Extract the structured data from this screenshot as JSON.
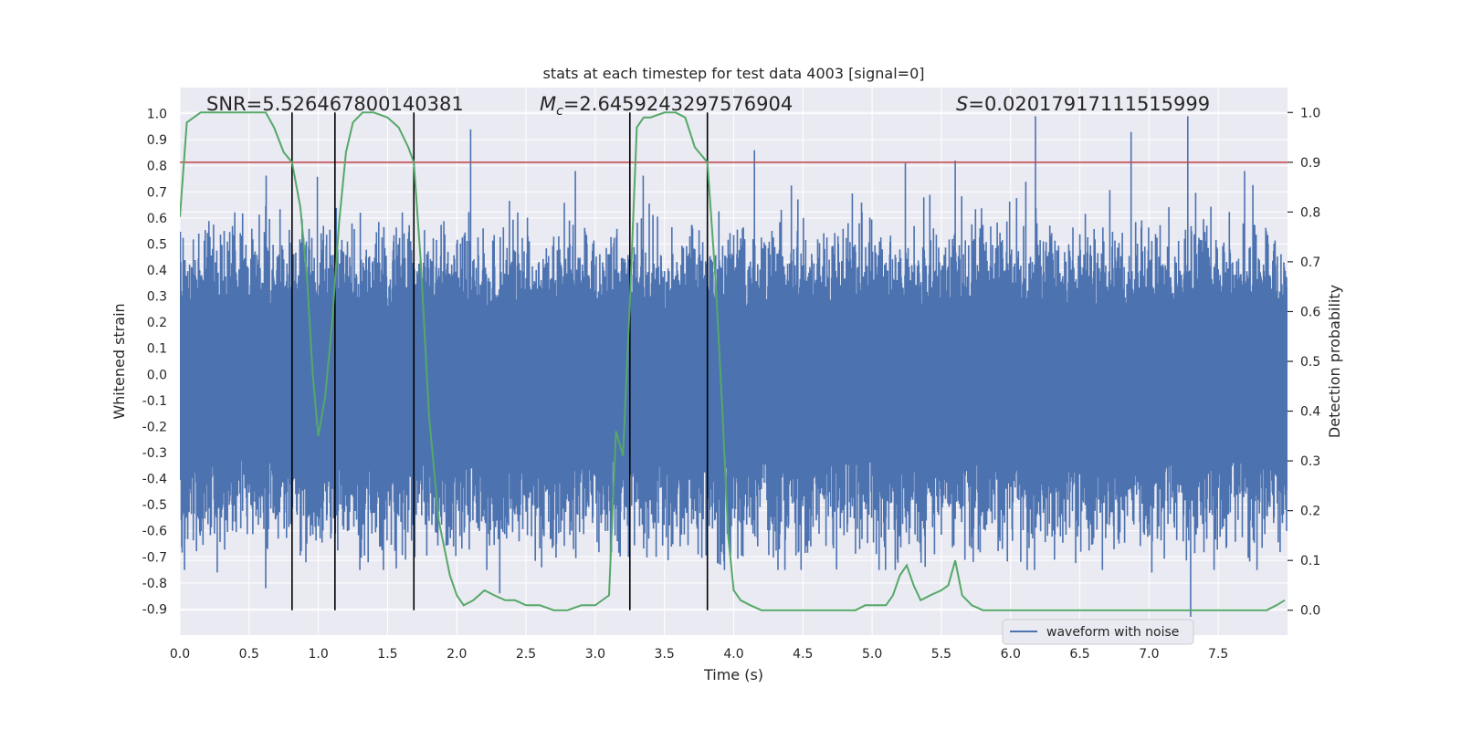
{
  "chart_data": {
    "type": "line",
    "title": "stats at each timestep for test data 4003 [signal=0]",
    "xlabel": "Time (s)",
    "ylabel_left": "Whitened strain",
    "ylabel_right": "Detection probability",
    "xlim": [
      0.0,
      8.0
    ],
    "ylim_left": [
      -1.0,
      1.1
    ],
    "ylim_right": [
      -0.05,
      1.05
    ],
    "x_ticks": [
      "0.0",
      "0.5",
      "1.0",
      "1.5",
      "2.0",
      "2.5",
      "3.0",
      "3.5",
      "4.0",
      "4.5",
      "5.0",
      "5.5",
      "6.0",
      "6.5",
      "7.0",
      "7.5"
    ],
    "y_left_ticks": [
      "1.0",
      "0.9",
      "0.8",
      "0.7",
      "0.6",
      "0.5",
      "0.4",
      "0.3",
      "0.2",
      "0.1",
      "0.0",
      "-0.1",
      "-0.2",
      "-0.3",
      "-0.4",
      "-0.5",
      "-0.6",
      "-0.7",
      "-0.8",
      "-0.9"
    ],
    "y_right_ticks": [
      "1.0",
      "0.9",
      "0.8",
      "0.7",
      "0.6",
      "0.5",
      "0.4",
      "0.3",
      "0.2",
      "0.1",
      "0.0"
    ],
    "annotations": {
      "snr": "SNR=5.526467800140381",
      "mc_symbol": "M",
      "mc_subscript": "c",
      "mc_value": "=2.6459243297576904",
      "s_symbol": "S",
      "s_value": "=0.02017917111515999"
    },
    "legend": {
      "label": "waveform with noise",
      "placement": "lower-right"
    },
    "threshold": {
      "value": 0.9,
      "axis": "right"
    },
    "vertical_lines_x": [
      0.81,
      1.12,
      1.69,
      3.25,
      3.81
    ],
    "waveform": {
      "name": "waveform with noise",
      "description_of_envelope": "dense noise around zero",
      "core_range": [
        -0.3,
        0.25
      ],
      "spikes": [
        {
          "x": 2.1,
          "y": 0.94
        },
        {
          "x": 4.15,
          "y": 0.86
        },
        {
          "x": 6.18,
          "y": 0.99
        },
        {
          "x": 7.28,
          "y": 0.99
        },
        {
          "x": 6.87,
          "y": 0.93
        },
        {
          "x": 5.24,
          "y": 0.81
        },
        {
          "x": 5.6,
          "y": 0.82
        },
        {
          "x": 7.3,
          "y": -0.93
        },
        {
          "x": 0.27,
          "y": -0.76
        },
        {
          "x": 0.62,
          "y": -0.82
        },
        {
          "x": 2.31,
          "y": -0.84
        },
        {
          "x": 7.02,
          "y": -0.76
        }
      ]
    },
    "detection_probability": {
      "name": "Detection probability",
      "x": [
        0.0,
        0.05,
        0.15,
        0.25,
        0.35,
        0.45,
        0.55,
        0.62,
        0.68,
        0.75,
        0.81,
        0.87,
        0.92,
        0.96,
        1.0,
        1.05,
        1.1,
        1.15,
        1.2,
        1.25,
        1.32,
        1.4,
        1.5,
        1.58,
        1.65,
        1.69,
        1.74,
        1.8,
        1.87,
        1.95,
        2.0,
        2.05,
        2.12,
        2.2,
        2.27,
        2.35,
        2.42,
        2.5,
        2.6,
        2.7,
        2.8,
        2.9,
        3.0,
        3.1,
        3.15,
        3.2,
        3.25,
        3.3,
        3.35,
        3.4,
        3.5,
        3.58,
        3.65,
        3.72,
        3.81,
        3.87,
        3.92,
        3.96,
        4.0,
        4.05,
        4.12,
        4.2,
        4.35,
        4.5,
        4.65,
        4.8,
        4.88,
        4.95,
        5.0,
        5.05,
        5.1,
        5.15,
        5.2,
        5.25,
        5.3,
        5.35,
        5.42,
        5.5,
        5.55,
        5.6,
        5.65,
        5.72,
        5.8,
        5.9,
        6.0,
        6.1,
        6.2,
        6.3,
        6.5,
        6.8,
        7.0,
        7.2,
        7.4,
        7.6,
        7.75,
        7.85,
        7.92,
        7.98
      ],
      "y": [
        0.79,
        0.98,
        1.0,
        1.0,
        1.0,
        1.0,
        1.0,
        1.0,
        0.97,
        0.92,
        0.9,
        0.81,
        0.66,
        0.47,
        0.35,
        0.43,
        0.58,
        0.78,
        0.92,
        0.98,
        1.0,
        1.0,
        0.99,
        0.97,
        0.93,
        0.9,
        0.7,
        0.39,
        0.18,
        0.07,
        0.03,
        0.01,
        0.02,
        0.04,
        0.03,
        0.02,
        0.02,
        0.01,
        0.01,
        0.0,
        0.0,
        0.01,
        0.01,
        0.03,
        0.36,
        0.31,
        0.62,
        0.97,
        0.99,
        0.99,
        1.0,
        1.0,
        0.99,
        0.93,
        0.9,
        0.66,
        0.39,
        0.15,
        0.04,
        0.02,
        0.01,
        0.0,
        0.0,
        0.0,
        0.0,
        0.0,
        0.0,
        0.01,
        0.01,
        0.01,
        0.01,
        0.03,
        0.07,
        0.09,
        0.05,
        0.02,
        0.03,
        0.04,
        0.05,
        0.1,
        0.03,
        0.01,
        0.0,
        0.0,
        0.0,
        0.0,
        0.0,
        0.0,
        0.0,
        0.0,
        0.0,
        0.0,
        0.0,
        0.0,
        0.0,
        0.0,
        0.01,
        0.02
      ]
    }
  }
}
